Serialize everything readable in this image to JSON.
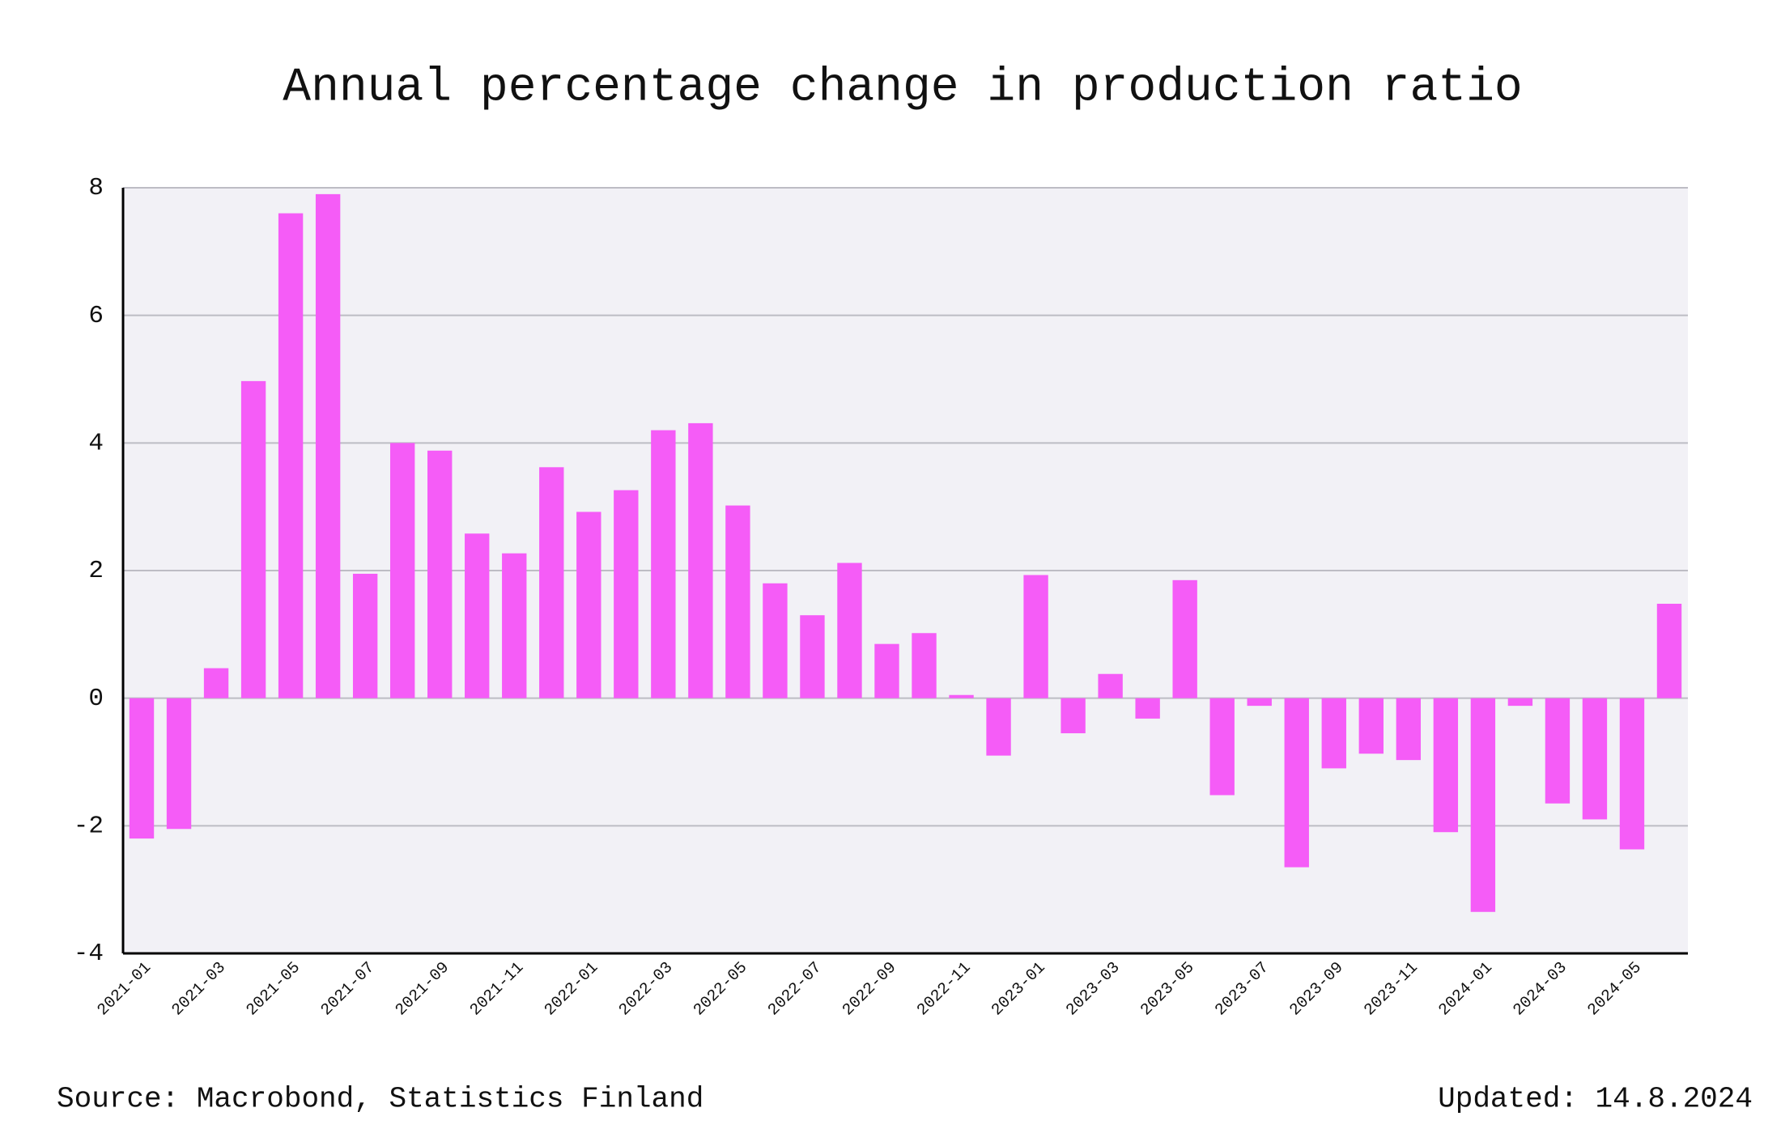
{
  "chart_data": {
    "type": "bar",
    "title": "Annual percentage change in production ratio",
    "categories": [
      "2021-01",
      null,
      "2021-03",
      null,
      "2021-05",
      null,
      "2021-07",
      null,
      "2021-09",
      null,
      "2021-11",
      null,
      "2022-01",
      null,
      "2022-03",
      null,
      "2022-05",
      null,
      "2022-07",
      null,
      "2022-09",
      null,
      "2022-11",
      null,
      "2023-01",
      null,
      "2023-03",
      null,
      "2023-05",
      null,
      "2023-07",
      null,
      "2023-09",
      null,
      "2023-11",
      null,
      "2024-01",
      null,
      "2024-03",
      null,
      "2024-05",
      null
    ],
    "values": [
      -2.2,
      -2.05,
      0.47,
      4.97,
      7.6,
      7.9,
      1.95,
      4.0,
      3.88,
      2.58,
      2.27,
      3.62,
      2.92,
      3.26,
      4.2,
      4.31,
      3.02,
      1.8,
      1.3,
      2.12,
      0.85,
      1.02,
      0.05,
      -0.9,
      1.93,
      -0.55,
      0.38,
      -0.32,
      1.85,
      -1.52,
      -0.12,
      -2.65,
      -1.1,
      -0.87,
      -0.97,
      -2.1,
      -3.35,
      -0.12,
      -1.65,
      -1.9,
      -2.37,
      1.48
    ],
    "color": "#f55cf7",
    "ylim": [
      -4,
      8
    ],
    "yticks": [
      -4,
      -2,
      0,
      2,
      4,
      6,
      8
    ],
    "grid": true,
    "source": "Source: Macrobond, Statistics Finland",
    "updated": "Updated: 14.8.2024"
  }
}
